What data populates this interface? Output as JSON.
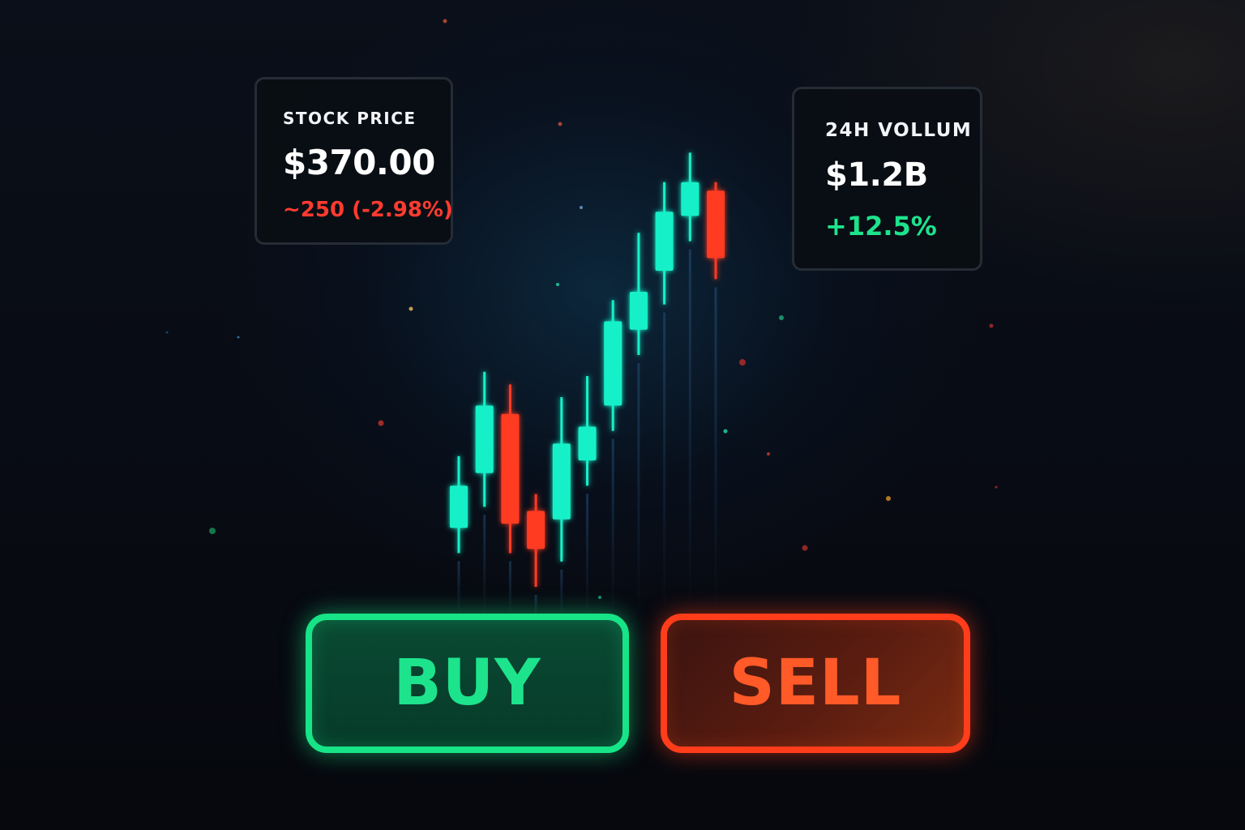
{
  "price_card": {
    "label": "STOCK PRICE",
    "value": "$370.00",
    "change": "~250 (-2.98%)"
  },
  "volume_card": {
    "label": "24H VOLLUM",
    "value": "$1.2B",
    "change": "+12.5%"
  },
  "actions": {
    "buy_label": "BUY",
    "sell_label": "SELL"
  },
  "colors": {
    "up": "#19f0c8",
    "down": "#ff3b24",
    "negative_text": "#ff3b2f",
    "positive_text": "#1de38c",
    "buy_accent": "#17e486",
    "sell_accent": "#ff3d1a"
  },
  "chart_data": {
    "type": "candlestick",
    "title": "",
    "xlabel": "",
    "ylabel": "",
    "ylim": [
      0,
      100
    ],
    "candles": [
      {
        "open": 9,
        "close": 19,
        "high": 26,
        "low": 3
      },
      {
        "open": 22,
        "close": 38,
        "high": 46,
        "low": 14
      },
      {
        "open": 36,
        "close": 10,
        "high": 43,
        "low": 3
      },
      {
        "open": 13,
        "close": 4,
        "high": 17,
        "low": -5
      },
      {
        "open": 11,
        "close": 29,
        "high": 40,
        "low": 1
      },
      {
        "open": 25,
        "close": 33,
        "high": 45,
        "low": 19
      },
      {
        "open": 38,
        "close": 58,
        "high": 63,
        "low": 32
      },
      {
        "open": 56,
        "close": 65,
        "high": 79,
        "low": 50
      },
      {
        "open": 70,
        "close": 84,
        "high": 91,
        "low": 62
      },
      {
        "open": 83,
        "close": 91,
        "high": 98,
        "low": 77
      },
      {
        "open": 89,
        "close": 73,
        "high": 91,
        "low": 68
      }
    ]
  }
}
